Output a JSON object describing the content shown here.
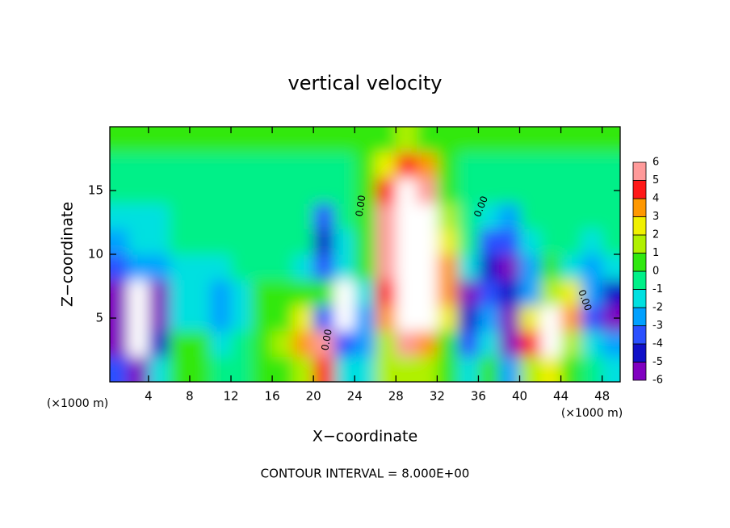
{
  "chart_data": {
    "type": "contour",
    "title": "vertical velocity",
    "x_label": "X−coordinate",
    "y_label": "Z−coordinate",
    "x_unit_labels": [
      "(×1000 m)",
      "(×1000 m)"
    ],
    "footer": "CONTOUR INTERVAL = 8.000E+00",
    "contour_labels": [
      "0.00",
      "0.00",
      "0.00",
      "0.00"
    ],
    "xlim": [
      0.25,
      49.75
    ],
    "ylim": [
      0,
      20
    ],
    "xticks": [
      4,
      8,
      12,
      16,
      20,
      24,
      28,
      32,
      36,
      40,
      44,
      48
    ],
    "yticks": [
      5,
      10,
      15
    ],
    "x": [
      1,
      3,
      5,
      7,
      9,
      11,
      13,
      15,
      17,
      19,
      21,
      23,
      25,
      27,
      29,
      31,
      33,
      35,
      37,
      39,
      41,
      43,
      45,
      47,
      49
    ],
    "y": [
      1,
      3,
      5,
      7,
      9,
      11,
      13,
      15,
      17,
      19
    ],
    "z": [
      [
        -3,
        -5,
        -1,
        1,
        0.5,
        -0.5,
        -0.5,
        0.3,
        1,
        2,
        5,
        -1,
        -1,
        1.5,
        2,
        1.5,
        0.5,
        -1,
        0.5,
        -2,
        2,
        3,
        1,
        -0.5,
        -1
      ],
      [
        -5,
        -8,
        -4,
        0.5,
        1,
        -1,
        -0.5,
        0.3,
        2,
        4,
        6,
        -3,
        -2,
        2,
        6,
        4,
        1,
        -3,
        -1,
        -5,
        5,
        8,
        2,
        -1,
        -2
      ],
      [
        -6,
        -8,
        -6,
        -1,
        -1,
        -2,
        -1,
        0.3,
        1,
        3,
        -3,
        -7,
        -2,
        4,
        10,
        8,
        3,
        -4,
        -2,
        -5,
        3,
        7,
        4,
        -3,
        -5
      ],
      [
        -5,
        -7,
        -5,
        -1.5,
        -1.5,
        -2,
        -1,
        0.5,
        0.5,
        1,
        0.5,
        -7,
        -1,
        5,
        11,
        9,
        4,
        -5,
        -3,
        -4,
        -2,
        2,
        3,
        -2,
        -4
      ],
      [
        -3,
        -2.5,
        -2,
        -1.3,
        -1.5,
        -1.5,
        -0.8,
        -0.5,
        -0.5,
        -1,
        -3,
        -1,
        1,
        6,
        10,
        9,
        4,
        -1,
        -4,
        -5,
        -2,
        0.5,
        -1,
        -2,
        -1
      ],
      [
        -2,
        -1.8,
        -1.2,
        -0.8,
        -0.7,
        -0.7,
        -0.6,
        -0.5,
        -0.5,
        -0.6,
        -4,
        -1,
        0.5,
        6,
        9,
        8,
        3,
        -0.5,
        -3,
        -3,
        -1.5,
        -0.6,
        -0.8,
        -1,
        -0.8
      ],
      [
        -1.5,
        -1.4,
        -1.1,
        -0.7,
        -0.6,
        -0.5,
        -0.5,
        -0.5,
        -0.5,
        -0.6,
        -3.5,
        -0.8,
        0.5,
        5.5,
        8,
        7,
        2,
        -0.5,
        -1.5,
        -2,
        -0.8,
        -0.6,
        -0.6,
        -0.6,
        -0.6
      ],
      [
        -0.6,
        -0.6,
        -0.6,
        -0.5,
        -0.5,
        -0.5,
        -0.5,
        -0.4,
        -0.4,
        -0.4,
        -0.5,
        -0.2,
        1,
        5,
        7,
        5.5,
        1,
        -0.3,
        -0.5,
        -0.5,
        -0.5,
        -0.5,
        -0.5,
        -0.5,
        -0.5
      ],
      [
        -0.3,
        -0.3,
        -0.3,
        -0.3,
        -0.3,
        -0.3,
        -0.2,
        -0.2,
        -0.2,
        -0.2,
        -0.2,
        0,
        0.3,
        3,
        4.5,
        3.5,
        0.3,
        -0.2,
        -0.3,
        -0.3,
        -0.3,
        -0.3,
        -0.3,
        -0.3,
        -0.3
      ],
      [
        0.2,
        0.2,
        0.2,
        0.2,
        0.2,
        0.2,
        0.2,
        0.2,
        0.2,
        0.2,
        0.2,
        0.3,
        0.5,
        1,
        1.2,
        1,
        0.5,
        0.3,
        0.2,
        0.2,
        0.2,
        0.2,
        0.2,
        0.2,
        0.2
      ]
    ],
    "levels": [
      -6,
      -5,
      -4,
      -3,
      -2,
      -1,
      0,
      1,
      2,
      3,
      4,
      5,
      6
    ],
    "colors": [
      "#8000c0",
      "#1010c8",
      "#2a50ff",
      "#00a0ff",
      "#00e0e0",
      "#00f088",
      "#30e810",
      "#b0f000",
      "#f0f000",
      "#ff9800",
      "#ff1818",
      "#ff9a9a"
    ],
    "out_of_range_color": "#ffffff"
  }
}
